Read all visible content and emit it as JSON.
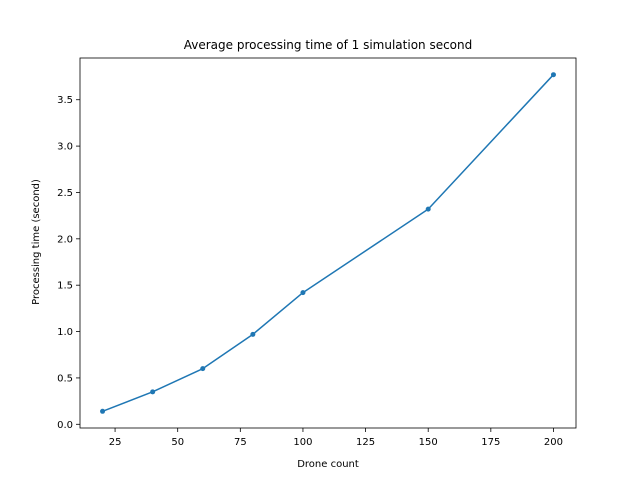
{
  "chart_data": {
    "type": "line",
    "title": "Average processing time of 1 simulation second",
    "xlabel": "Drone count",
    "ylabel": "Processing time (second)",
    "x": [
      20,
      40,
      60,
      80,
      100,
      150,
      200
    ],
    "series": [
      {
        "values": [
          0.14,
          0.35,
          0.6,
          0.97,
          1.42,
          2.32,
          3.77
        ]
      }
    ],
    "xlim": [
      11,
      209
    ],
    "ylim": [
      -0.04,
      3.95
    ],
    "xticks": [
      25,
      50,
      75,
      100,
      125,
      150,
      175,
      200
    ],
    "xtick_labels": [
      "25",
      "50",
      "75",
      "100",
      "125",
      "150",
      "175",
      "200"
    ],
    "yticks": [
      0.0,
      0.5,
      1.0,
      1.5,
      2.0,
      2.5,
      3.0,
      3.5
    ],
    "ytick_labels": [
      "0.0",
      "0.5",
      "1.0",
      "1.5",
      "2.0",
      "2.5",
      "3.0",
      "3.5"
    ],
    "grid": false,
    "marker": "circle",
    "line_color": "#1f77b4"
  }
}
